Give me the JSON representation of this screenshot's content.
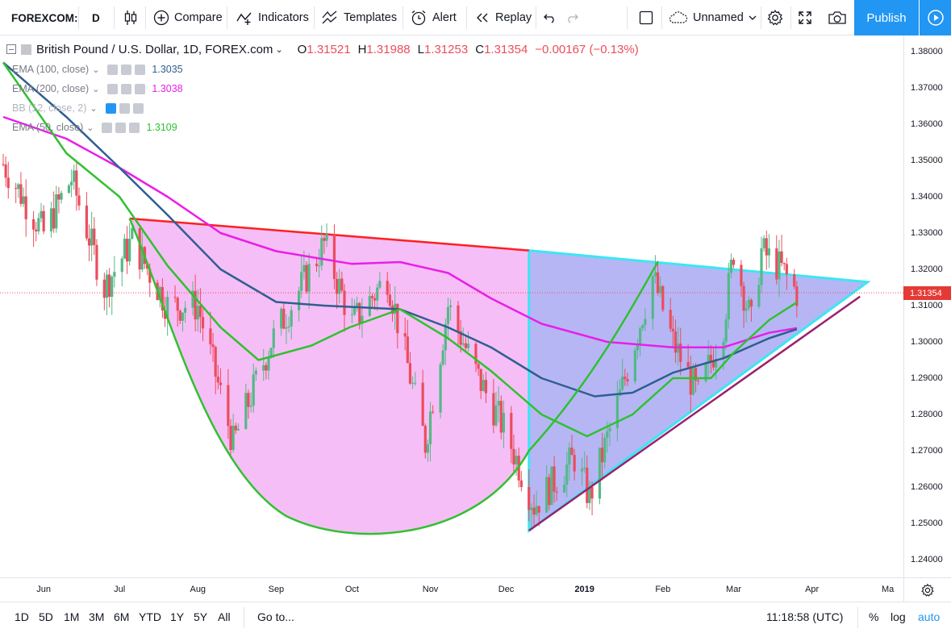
{
  "toolbar": {
    "symbol": "FOREXCOM:",
    "interval": "D",
    "compare": "Compare",
    "indicators": "Indicators",
    "templates": "Templates",
    "alert": "Alert",
    "replay": "Replay",
    "layout_name": "Unnamed",
    "publish": "Publish"
  },
  "legend": {
    "title": "British Pound / U.S. Dollar, 1D, FOREX.com",
    "open_label": "O",
    "open": "1.31521",
    "high_label": "H",
    "high": "1.31988",
    "low_label": "L",
    "low": "1.31253",
    "close_label": "C",
    "close": "1.31354",
    "change": "−0.00167 (−0.13%)",
    "indicators": [
      {
        "label": "EMA (100, close)",
        "value": "1.3035",
        "color": "#2e5f8f"
      },
      {
        "label": "EMA (200, close)",
        "value": "1.3038",
        "color": "#e91ee8"
      },
      {
        "label": "BB (12, close, 2)",
        "value": "",
        "color": "#2196f3"
      },
      {
        "label": "EMA (50, close)",
        "value": "1.3109",
        "color": "#2fc12f"
      }
    ]
  },
  "price_axis": {
    "labels": [
      "1.38000",
      "1.37000",
      "1.36000",
      "1.35000",
      "1.34000",
      "1.33000",
      "1.32000",
      "1.31000",
      "1.30000",
      "1.29000",
      "1.28000",
      "1.27000",
      "1.26000",
      "1.25000",
      "1.24000"
    ],
    "last_price": "1.31354",
    "last_price_color": "#e53935"
  },
  "time_axis": {
    "labels": [
      "Jun",
      "Jul",
      "Aug",
      "Sep",
      "Oct",
      "Nov",
      "Dec",
      "2019",
      "Feb",
      "Mar",
      "Apr",
      "Ma"
    ]
  },
  "bottombar": {
    "ranges": [
      "1D",
      "5D",
      "1M",
      "3M",
      "6M",
      "YTD",
      "1Y",
      "5Y",
      "All"
    ],
    "goto": "Go to...",
    "clock": "11:18:58 (UTC)",
    "percent": "%",
    "log": "log",
    "auto": "auto"
  },
  "chart_data": {
    "type": "candlestick",
    "title": "British Pound / U.S. Dollar, 1D, FOREX.com",
    "xlabel": "",
    "ylabel": "",
    "ylim": [
      1.235,
      1.385
    ],
    "x_range": [
      "2018-05-16",
      "2019-04-26"
    ],
    "ohlc_last": {
      "open": 1.31521,
      "high": 1.31988,
      "low": 1.31253,
      "close": 1.31354,
      "change": -0.00167,
      "change_pct": -0.13
    },
    "ema_values": {
      "ema100": 1.3035,
      "ema200": 1.3038,
      "ema50": 1.3109
    },
    "colors": {
      "up": "#53b987",
      "down": "#eb4d5c",
      "ema200": "#e91ee8",
      "ema100": "#2e5f8f",
      "ema50": "#2fc12f",
      "cup_fill": "#f5b3f5",
      "triangle_fill": "#8f8ff0",
      "triangle_edge": "#3ce6f2",
      "trend_red": "#ff1f1f"
    }
  }
}
